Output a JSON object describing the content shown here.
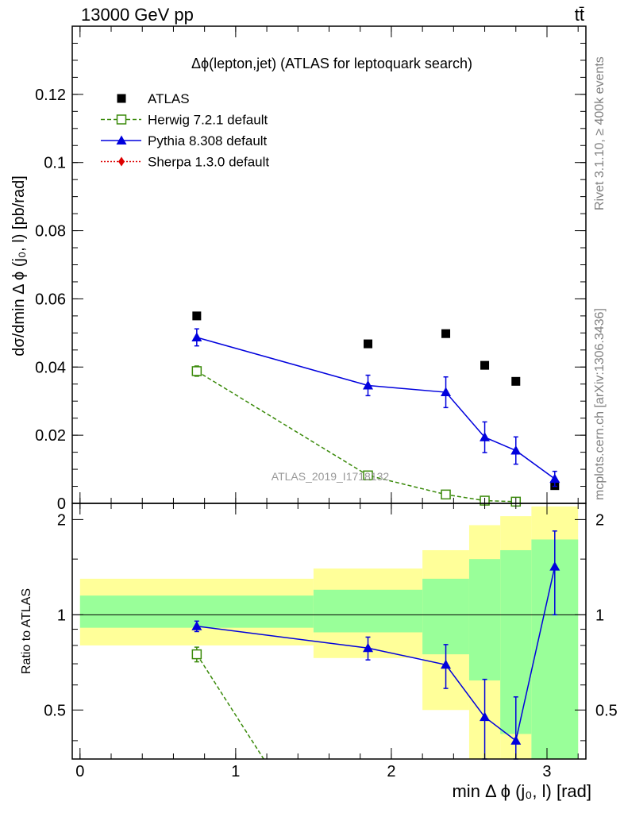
{
  "header": {
    "energy_label": "13000 GeV pp",
    "process_label": "tt̄"
  },
  "side_labels": {
    "rivet": "Rivet 3.1.10, ≥ 400k events",
    "mcplots": "mcplots.cern.ch [arXiv:1306.3436]"
  },
  "colors": {
    "data": "#000000",
    "herwig": "#3a8a0a",
    "pythia": "#0000dd",
    "sherpa": "#dd0000",
    "band_outer": "#ffff99",
    "band_inner": "#99ff99"
  },
  "chart_data": [
    {
      "type": "scatter",
      "title": "Δϕ(lepton,jet) (ATLAS for leptoquark search)",
      "ylabel": "dσ/dmin Δ ϕ (j₀, l) [pb/rad]",
      "watermark": "ATLAS_2019_I1718132",
      "xlim": [
        -0.05,
        3.25
      ],
      "ylim": [
        0,
        0.14
      ],
      "yticks": [
        0,
        0.02,
        0.04,
        0.06,
        0.08,
        0.1,
        0.12
      ],
      "ytick_labels": [
        "0",
        "0.02",
        "0.04",
        "0.06",
        "0.08",
        "0.1",
        "0.12"
      ],
      "legend_position": "top-left",
      "series": [
        {
          "name": "ATLAS",
          "style": "data",
          "x": [
            0.75,
            1.85,
            2.35,
            2.6,
            2.8,
            3.05
          ],
          "y": [
            0.055,
            0.0468,
            0.0498,
            0.0405,
            0.0358,
            0.0052
          ],
          "yerr": [
            0,
            0,
            0,
            0,
            0,
            0
          ]
        },
        {
          "name": "Herwig 7.2.1 default",
          "style": "herwig",
          "x": [
            0.75,
            1.85,
            2.35,
            2.6,
            2.8
          ],
          "y": [
            0.0388,
            0.0082,
            0.0026,
            0.0008,
            0.0005
          ],
          "yerr": [
            0.0015,
            0.0006,
            0.0004,
            0.0002,
            0.0002
          ]
        },
        {
          "name": "Pythia 8.308 default",
          "style": "pythia",
          "x": [
            0.75,
            1.85,
            2.35,
            2.6,
            2.8,
            3.05
          ],
          "y": [
            0.0487,
            0.0346,
            0.0326,
            0.0194,
            0.0155,
            0.0072
          ],
          "yerr": [
            0.0025,
            0.003,
            0.0045,
            0.0045,
            0.004,
            0.0022
          ]
        },
        {
          "name": "Sherpa 1.3.0 default",
          "style": "sherpa",
          "x": [],
          "y": [],
          "yerr": []
        }
      ]
    },
    {
      "type": "scatter",
      "ylabel": "Ratio to ATLAS",
      "xlabel": "min Δ ϕ (j₀, l) [rad]",
      "xlim": [
        -0.05,
        3.25
      ],
      "ylim": [
        0.35,
        2.25
      ],
      "xticks": [
        0,
        1,
        2,
        3
      ],
      "xtick_labels": [
        "0",
        "1",
        "2",
        "3"
      ],
      "yticks": [
        0.5,
        1,
        2
      ],
      "ytick_labels": [
        "0.5",
        "1",
        "2"
      ],
      "reference_line": 1,
      "bands": {
        "edges": [
          0,
          1.5,
          2.2,
          2.5,
          2.7,
          2.9,
          3.2
        ],
        "outer_low": [
          0.8,
          0.73,
          0.5,
          0.35,
          0.35,
          0.35
        ],
        "outer_high": [
          1.3,
          1.4,
          1.6,
          1.92,
          2.05,
          2.2
        ],
        "inner_low": [
          0.91,
          0.88,
          0.75,
          0.62,
          0.42,
          0.35
        ],
        "inner_high": [
          1.15,
          1.2,
          1.3,
          1.5,
          1.6,
          1.73
        ]
      },
      "series": [
        {
          "name": "Herwig 7.2.1 default",
          "style": "herwig",
          "x": [
            0.75,
            1.18
          ],
          "y": [
            0.75,
            0.35
          ],
          "yerr": [
            0.04,
            0
          ],
          "markers": [
            true,
            false
          ]
        },
        {
          "name": "Pythia 8.308 default",
          "style": "pythia",
          "x": [
            0.75,
            1.85,
            2.35,
            2.6,
            2.8,
            3.05
          ],
          "y": [
            0.92,
            0.785,
            0.695,
            0.475,
            0.4,
            1.42
          ],
          "yerr": [
            0.035,
            0.065,
            0.11,
            0.15,
            0.15,
            0.42
          ]
        }
      ]
    }
  ]
}
